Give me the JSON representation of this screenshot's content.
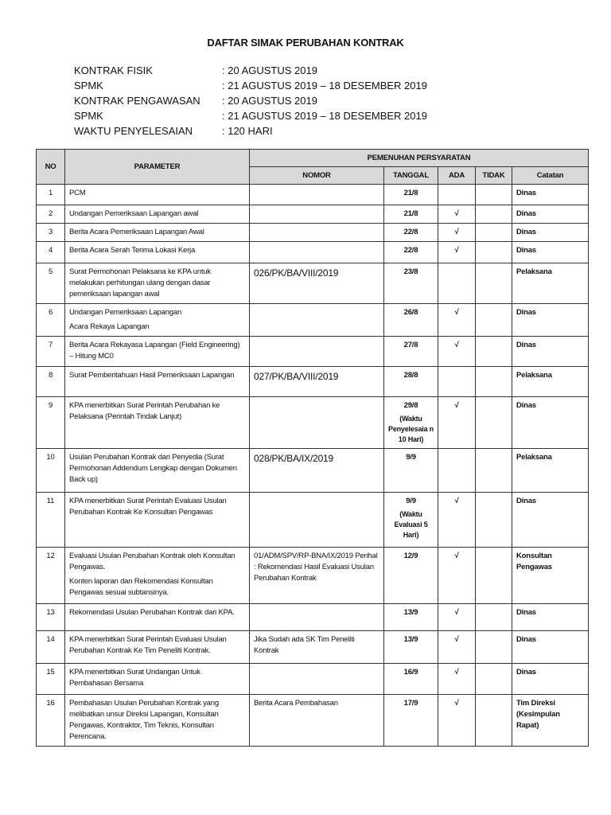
{
  "title": "DAFTAR SIMAK PERUBAHAN KONTRAK",
  "info": [
    {
      "label": "KONTRAK FISIK",
      "value": ": 20 AGUSTUS 2019"
    },
    {
      "label": "SPMK",
      "value": ": 21 AGUSTUS 2019 – 18 DESEMBER 2019"
    },
    {
      "label": "KONTRAK PENGAWASAN",
      "value": ": 20 AGUSTUS 2019"
    },
    {
      "label": "SPMK",
      "value": ": 21 AGUSTUS 2019 – 18 DESEMBER 2019"
    },
    {
      "label": "WAKTU PENYELESAIAN",
      "value": ": 120 HARI"
    }
  ],
  "table": {
    "headers": {
      "no": "NO",
      "parameter": "PARAMETER",
      "group": "PEMENUHAN PERSYARATAN",
      "nomor": "NOMOR",
      "tanggal": "TANGGAL",
      "ada": "ADA",
      "tidak": "TIDAK",
      "catatan": "Catatan"
    },
    "rows": [
      {
        "no": "1",
        "parameter": [
          "PCM"
        ],
        "nomor": "",
        "tanggal": "21/8",
        "tanggal_note": "",
        "ada": "",
        "tidak": "",
        "catatan": "Dinas"
      },
      {
        "no": "2",
        "parameter": [
          "Undangan Pemeriksaan Lapangan awal"
        ],
        "nomor": "",
        "tanggal": "21/8",
        "tanggal_note": "",
        "ada": "√",
        "tidak": "",
        "catatan": "Dinas"
      },
      {
        "no": "3",
        "parameter": [
          "Berita Acara Pemeriksaan Lapangan Awal"
        ],
        "nomor": "",
        "tanggal": "22/8",
        "tanggal_note": "",
        "ada": "√",
        "tidak": "",
        "catatan": "Dinas"
      },
      {
        "no": "4",
        "parameter": [
          "Berita Acara Serah Terima Lokasi Kerja"
        ],
        "nomor": "",
        "tanggal": "22/8",
        "tanggal_note": "",
        "ada": "√",
        "tidak": "",
        "catatan": "Dinas"
      },
      {
        "no": "5",
        "parameter": [
          "Surat Permohonan Pelaksana ke KPA untuk melakukan perhitungan ulang dengan dasar pemeriksaan lapangan awal"
        ],
        "nomor": "026/PK/BA/VIII/2019",
        "nomor_big": true,
        "tanggal": "23/8",
        "tanggal_note": "",
        "ada": "",
        "tidak": "",
        "catatan": "Pelaksana"
      },
      {
        "no": "6",
        "parameter": [
          "Undangan Pemeriksaan Lapangan",
          "Acara Rekaya Lapangan"
        ],
        "nomor": "",
        "tanggal": "26/8",
        "tanggal_note": "",
        "ada": "√",
        "tidak": "",
        "catatan": "Dinas"
      },
      {
        "no": "7",
        "parameter": [
          "Berita Acara Rekayasa Lapangan (Field Engineering) – Hitung MC0"
        ],
        "nomor": "",
        "tanggal": "27/8",
        "tanggal_note": "",
        "ada": "√",
        "tidak": "",
        "catatan": "Dinas"
      },
      {
        "no": "8",
        "parameter": [
          "Surat Pemberitahuan  Hasil Pemeriksaan Lapangan"
        ],
        "nomor": "027/PK/BA/VIII/2019",
        "nomor_big": true,
        "tanggal": "28/8",
        "tanggal_note": "",
        "ada": "",
        "tidak": "",
        "catatan": "Pelaksana"
      },
      {
        "no": "9",
        "parameter": [
          "KPA menerbitkan Surat Perintah Perubahan ke Pelaksana (Perintah Tindak Lanjut)"
        ],
        "nomor": "",
        "tanggal": "29/8",
        "tanggal_note": "(Waktu Penyelesaia n 10 Hari)",
        "ada": "√",
        "tidak": "",
        "catatan": "Dinas"
      },
      {
        "no": "10",
        "parameter": [
          "Usulan Perubahan Kontrak dari Penyedia (Surat  Permohonan  Addendum Lengkap dengan Dokumen Back up)"
        ],
        "nomor": "028/PK/BA/IX/2019",
        "nomor_big": true,
        "tanggal": "9/9",
        "tanggal_note": "",
        "ada": "",
        "tidak": "",
        "catatan": "Pelaksana"
      },
      {
        "no": "11",
        "parameter": [
          "KPA  menerbitkan Surat Perintah Evaluasi Usulan Perubahan Kontrak Ke Konsultan Pengawas"
        ],
        "nomor": "",
        "tanggal": "9/9",
        "tanggal_note": "(Waktu Evaluasi 5 Hari)",
        "ada": "√",
        "tidak": "",
        "catatan": "Dinas"
      },
      {
        "no": "12",
        "parameter": [
          "Evaluasi Usulan Perubahan Kontrak oleh Konsultan Pengawas.",
          "Konten laporan dan Rekomendasi Konsultan Pengawas sesuai subtansinya."
        ],
        "nomor": "01/ADM/SPV/RP-BNA/IX/2019 Perihal : Rekomendasi Hasil Evaluasi Usulan Perubahan Kontrak",
        "tanggal": "12/9",
        "tanggal_note": "",
        "ada": "√",
        "tidak": "",
        "catatan": "Konsultan Pengawas"
      },
      {
        "no": "13",
        "parameter": [
          "Rekomendasi Usulan Perubahan Kontrak dari KPA."
        ],
        "nomor": "",
        "tanggal": "13/9",
        "tanggal_note": "",
        "ada": "√",
        "tidak": "",
        "catatan": "Dinas"
      },
      {
        "no": "14",
        "parameter": [
          "KPA menerbitkan Surat Perintah Evaluasi Usulan Perubahan Kontrak Ke Tim Peneliti Kontrak."
        ],
        "nomor": "Jika Sudah ada SK Tim Peneliti Kontrak",
        "tanggal": "13/9",
        "tanggal_note": "",
        "ada": "√",
        "tidak": "",
        "catatan": "Dinas"
      },
      {
        "no": "15",
        "parameter": [
          "KPA menerbitkan Surat Undangan Untuk Pembahasan Bersama"
        ],
        "nomor": "",
        "tanggal": "16/9",
        "tanggal_note": "",
        "ada": "√",
        "tidak": "",
        "catatan": "Dinas"
      },
      {
        "no": "16",
        "parameter": [
          "Pembahasan Usulan Perubahan Kontrak yang melibatkan unsur Direksi Lapangan, Konsultan Pengawas, Kontraktor, Tim Teknis, Konsultan Perencana."
        ],
        "nomor": "Berita Acara Pembahasan",
        "tanggal": "17/9",
        "tanggal_note": "",
        "ada": "√",
        "tidak": "",
        "catatan": "Tim Direksi (Kesimpulan Rapat)"
      }
    ]
  }
}
